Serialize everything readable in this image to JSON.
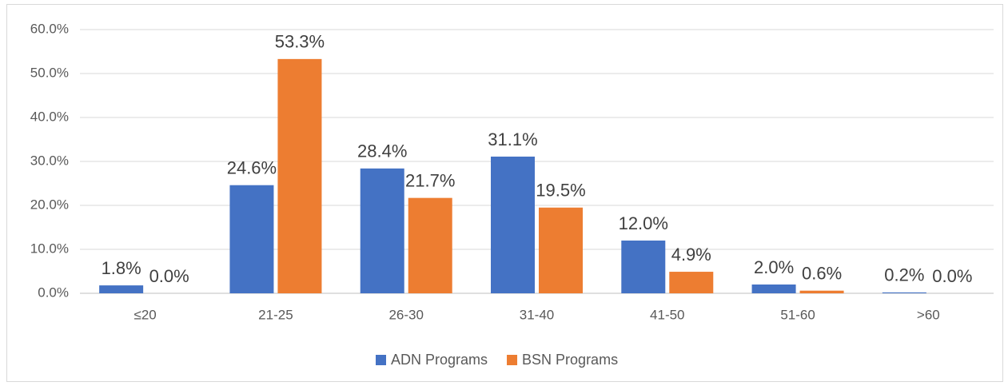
{
  "chart_data": {
    "type": "bar",
    "categories": [
      "≤20",
      "21-25",
      "26-30",
      "31-40",
      "41-50",
      "51-60",
      ">60"
    ],
    "series": [
      {
        "name": "ADN Programs",
        "color": "#4472c4",
        "values": [
          1.8,
          24.6,
          28.4,
          31.1,
          12.0,
          2.0,
          0.2
        ],
        "value_labels": [
          "1.8%",
          "24.6%",
          "28.4%",
          "31.1%",
          "12.0%",
          "2.0%",
          "0.2%"
        ]
      },
      {
        "name": "BSN Programs",
        "color": "#ed7d31",
        "values": [
          0.0,
          53.3,
          21.7,
          19.5,
          4.9,
          0.6,
          0.0
        ],
        "value_labels": [
          "0.0%",
          "53.3%",
          "21.7%",
          "19.5%",
          "4.9%",
          "0.6%",
          "0.0%"
        ]
      }
    ],
    "ylim": [
      0,
      60
    ],
    "yticks": [
      {
        "value": 0,
        "label": "0.0%"
      },
      {
        "value": 10,
        "label": "10.0%"
      },
      {
        "value": 20,
        "label": "20.0%"
      },
      {
        "value": 30,
        "label": "30.0%"
      },
      {
        "value": 40,
        "label": "40.0%"
      },
      {
        "value": 50,
        "label": "50.0%"
      },
      {
        "value": 60,
        "label": "60.0%"
      }
    ],
    "grid": true,
    "legend": "bottom"
  }
}
